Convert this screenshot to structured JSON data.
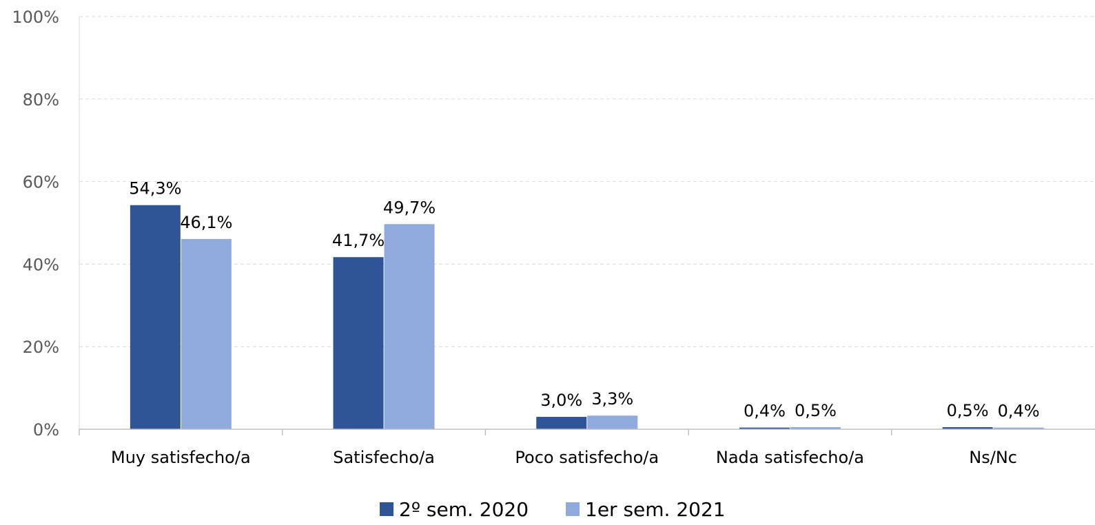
{
  "chart_data": {
    "type": "bar",
    "categories": [
      "Muy satisfecho/a",
      "Satisfecho/a",
      "Poco satisfecho/a",
      "Nada satisfecho/a",
      "Ns/Nc"
    ],
    "series": [
      {
        "name": "2º sem. 2020",
        "color": "#2F5597",
        "values": [
          54.3,
          41.7,
          3.0,
          0.4,
          0.5
        ],
        "labels": [
          "54,3%",
          "41,7%",
          "3,0%",
          "0,4%",
          "0,5%"
        ]
      },
      {
        "name": "1er sem. 2021",
        "color": "#8FAADC",
        "values": [
          46.1,
          49.7,
          3.3,
          0.5,
          0.4
        ],
        "labels": [
          "46,1%",
          "49,7%",
          "3,3%",
          "0,5%",
          "0,4%"
        ]
      }
    ],
    "ylim": [
      0,
      100
    ],
    "yticks": [
      0,
      20,
      40,
      60,
      80,
      100
    ],
    "ytick_labels": [
      "0%",
      "20%",
      "40%",
      "60%",
      "80%",
      "100%"
    ],
    "grid": true,
    "legend_position": "bottom-center"
  }
}
